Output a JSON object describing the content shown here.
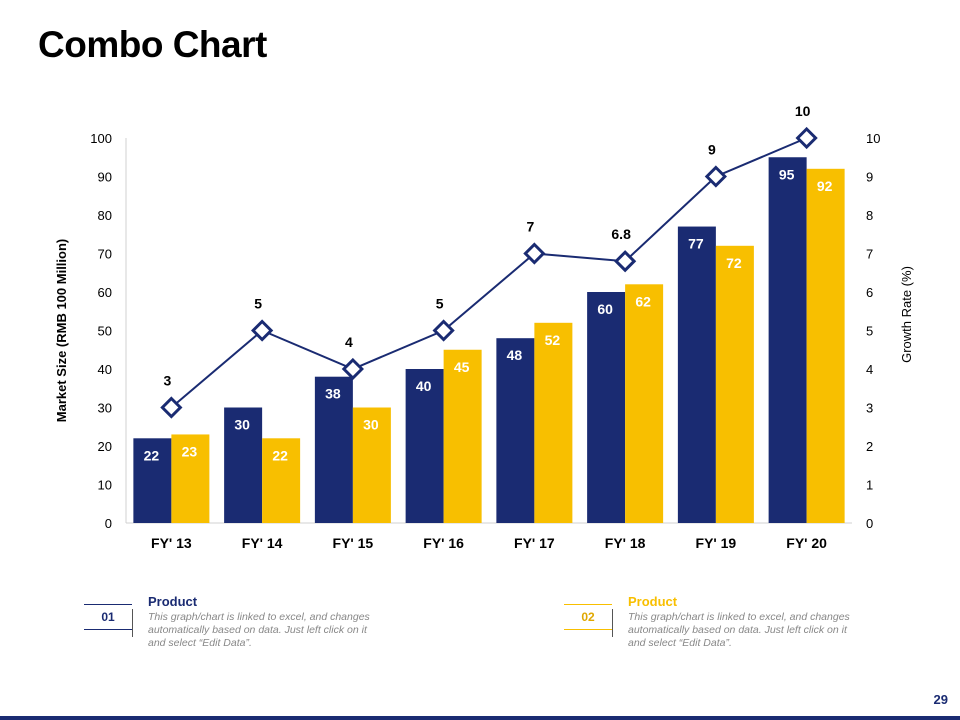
{
  "title": "Combo Chart",
  "page_number": "29",
  "colors": {
    "navy": "#1a2b72",
    "gold": "#f8bf00",
    "line": "#1a2b72"
  },
  "legend": [
    {
      "num": "01",
      "heading": "Product",
      "color": "#1a2b72",
      "desc": "This graph/chart is linked to excel, and changes automatically based on data. Just left click on it and select “Edit Data”."
    },
    {
      "num": "02",
      "heading": "Product",
      "color": "#f8bf00",
      "desc": "This graph/chart is linked to excel, and changes automatically based on data. Just left click on it and select “Edit Data”."
    }
  ],
  "chart_data": {
    "type": "bar",
    "categories": [
      "FY' 13",
      "FY' 14",
      "FY' 15",
      "FY' 16",
      "FY' 17",
      "FY' 18",
      "FY' 19",
      "FY' 20"
    ],
    "series": [
      {
        "values": [
          22,
          30,
          38,
          40,
          48,
          60,
          77,
          95
        ],
        "color": "#1a2b72",
        "type": "bar"
      },
      {
        "values": [
          23,
          22,
          30,
          45,
          52,
          62,
          72,
          92
        ],
        "color": "#f8bf00",
        "type": "bar"
      },
      {
        "values": [
          3,
          5,
          4,
          5,
          7,
          6.8,
          9,
          10
        ],
        "color": "#1a2b72",
        "type": "line",
        "axis": "right"
      }
    ],
    "ylabel": "Market Size (RMB 100 Million)",
    "y2label": "Growth Rate (%)",
    "ylim": [
      0,
      100
    ],
    "y2lim": [
      0,
      10
    ],
    "yticks": [
      "0",
      "10",
      "20",
      "30",
      "40",
      "50",
      "60",
      "70",
      "80",
      "90",
      "100"
    ],
    "y2ticks": [
      "0",
      "1",
      "2",
      "3",
      "4",
      "5",
      "6",
      "7",
      "8",
      "9",
      "10"
    ],
    "grid": false,
    "legend": "none"
  }
}
